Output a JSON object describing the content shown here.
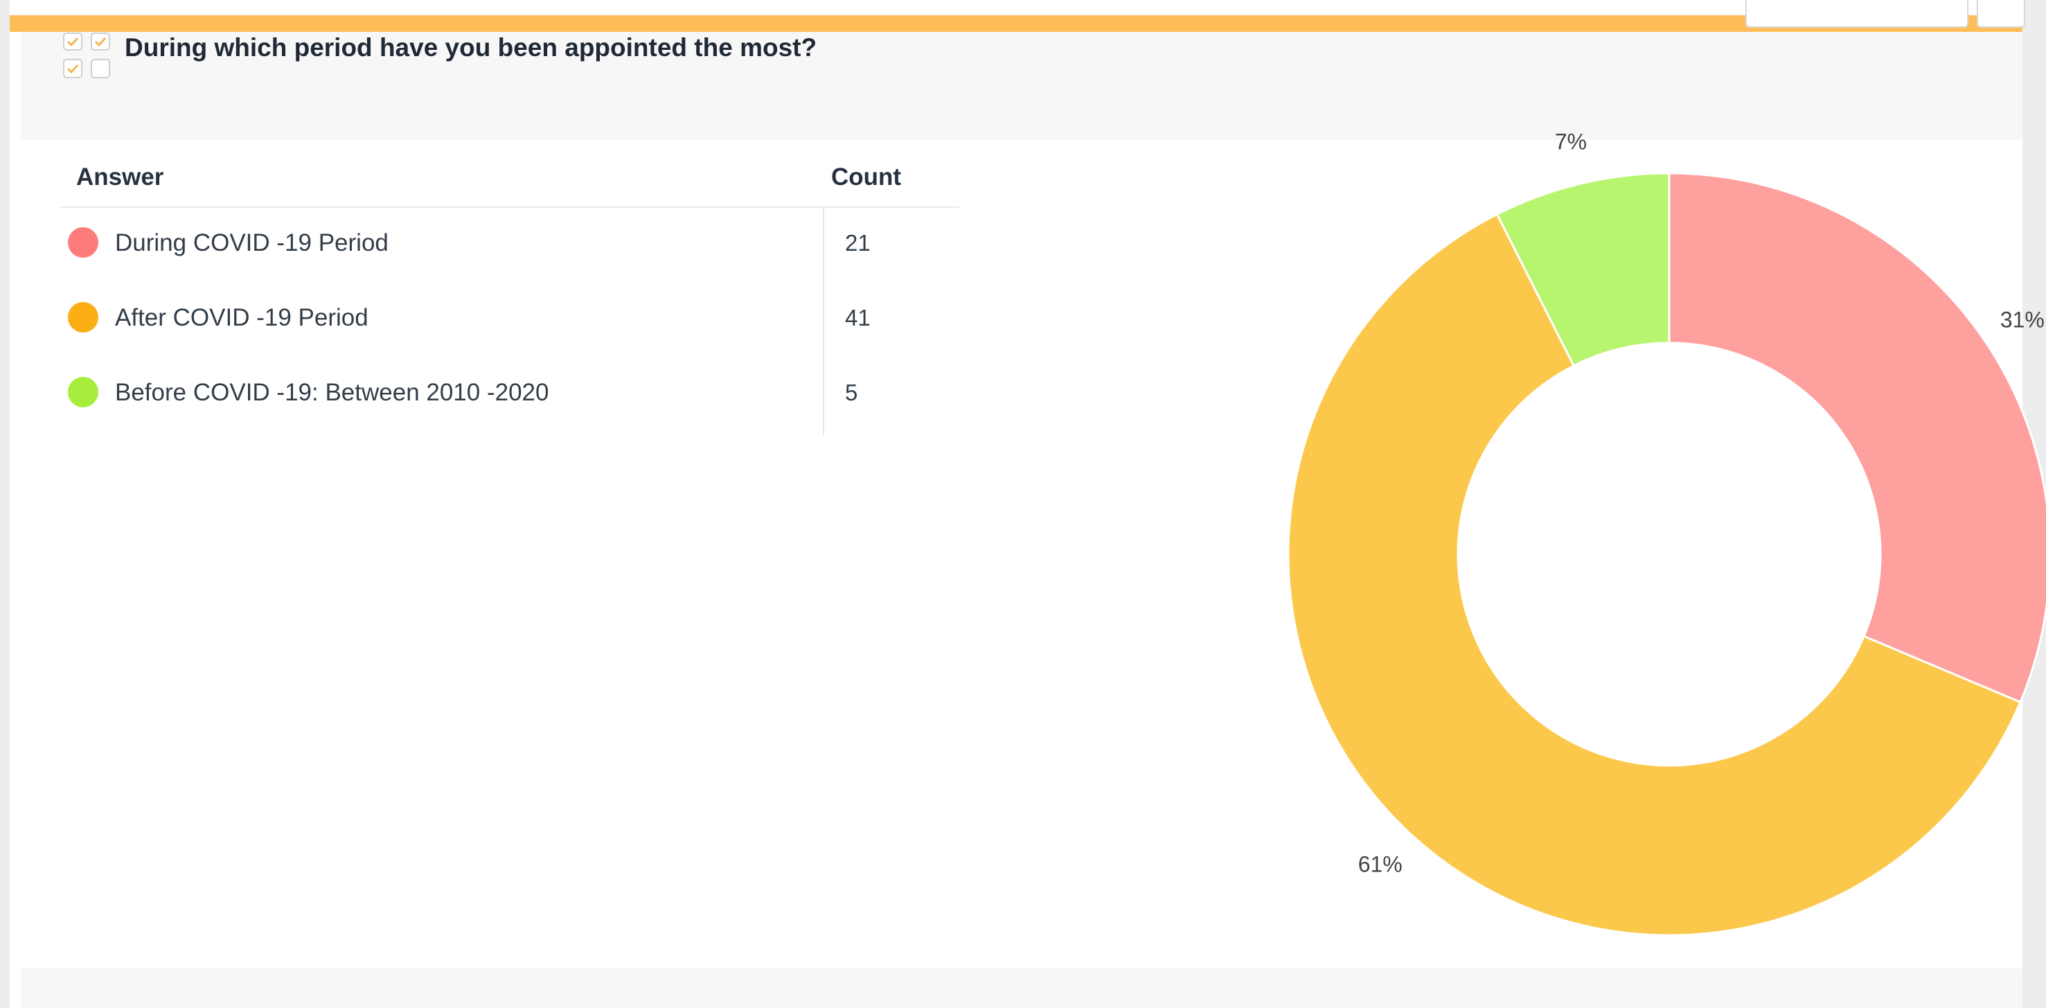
{
  "question": {
    "title": "During which period have you been appointed the most?"
  },
  "table": {
    "headers": {
      "answer": "Answer",
      "count": "Count"
    },
    "rows": [
      {
        "answer": "During COVID -19 Period",
        "count": "21",
        "color": "#fd7b7b"
      },
      {
        "answer": "After COVID -19 Period",
        "count": "41",
        "color": "#fbae13"
      },
      {
        "answer": "Before COVID -19: Between 2010 -2020",
        "count": "5",
        "color": "#a6ee3b"
      }
    ]
  },
  "colors": {
    "accent_bar": "#ffbd5a"
  },
  "chart_data": {
    "type": "pie",
    "donut": true,
    "categories": [
      "During COVID -19 Period",
      "After COVID -19 Period",
      "Before COVID -19: Between 2010 -2020"
    ],
    "values": [
      21,
      41,
      5
    ],
    "data_labels": [
      "31%",
      "61%",
      "7%"
    ],
    "colors": [
      "#fea09e",
      "#fcc84c",
      "#b7f56f"
    ]
  }
}
